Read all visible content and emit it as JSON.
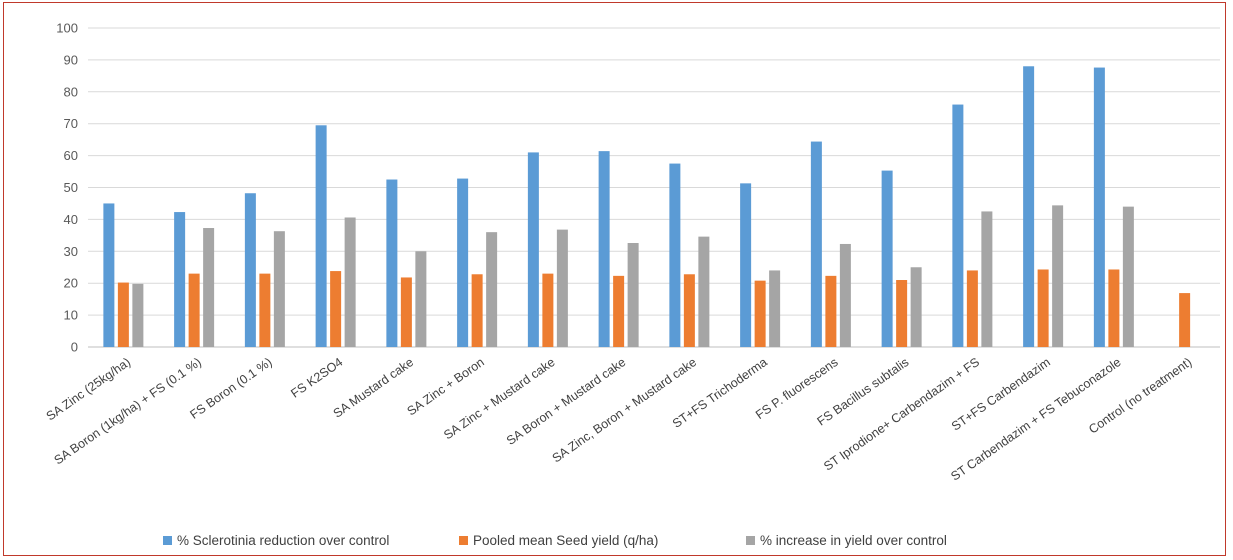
{
  "chart_data": {
    "type": "bar",
    "title": "",
    "xlabel": "",
    "ylabel": "",
    "ylim": [
      0,
      100
    ],
    "yticks": [
      0,
      10,
      20,
      30,
      40,
      50,
      60,
      70,
      80,
      90,
      100
    ],
    "grid": true,
    "legend_position": "bottom",
    "categories": [
      "SA Zinc (25kg/ha)",
      "SA Boron (1kg/ha) + FS (0.1 %)",
      "FS Boron (0.1 %)",
      "FS K2SO4",
      "SA Mustard cake",
      "SA  Zinc + Boron",
      "SA  Zinc +  Mustard cake",
      "SA  Boron + Mustard cake",
      "SA  Zinc, Boron + Mustard cake",
      "ST+FS  Trichoderma",
      "FS  P. fluorescens",
      "FS  Bacillus subtalis",
      "ST  Iprodione+ Carbendazim + FS",
      "ST+FS Carbendazim",
      "ST Carbendazim + FS Tebuconazole",
      "Control (no treatment)"
    ],
    "series": [
      {
        "name": "% Sclerotinia reduction over control",
        "color": "#5b9bd5",
        "values": [
          45,
          42.3,
          48.2,
          69.5,
          52.5,
          52.8,
          61,
          61.4,
          57.5,
          51.3,
          64.4,
          55.3,
          76,
          88,
          87.6,
          null
        ]
      },
      {
        "name": "Pooled mean Seed yield (q/ha)",
        "color": "#ed7d31",
        "values": [
          20.2,
          23,
          23,
          23.8,
          21.8,
          22.8,
          23,
          22.3,
          22.8,
          20.8,
          22.3,
          21,
          24,
          24.3,
          24.3,
          16.9
        ]
      },
      {
        "name": "%  increase in yield over control",
        "color": "#a5a5a5",
        "values": [
          19.8,
          37.3,
          36.3,
          40.6,
          30,
          36,
          36.8,
          32.6,
          34.6,
          24,
          32.3,
          25,
          42.5,
          44.4,
          44,
          null
        ]
      }
    ]
  }
}
